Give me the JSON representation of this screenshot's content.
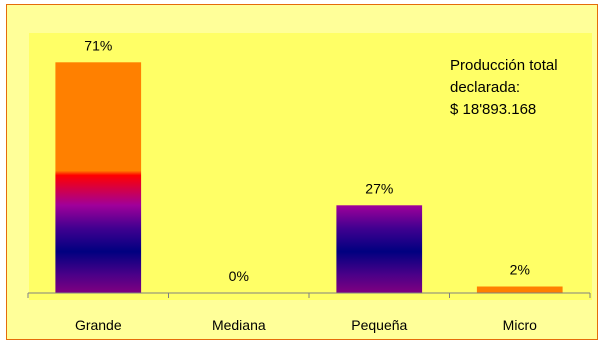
{
  "chart_data": {
    "type": "bar",
    "title": "",
    "xlabel": "",
    "ylabel": "",
    "categories": [
      "Grande",
      "Mediana",
      "Pequeña",
      "Micro"
    ],
    "values": [
      71,
      0,
      27,
      2
    ],
    "data_labels": [
      "71%",
      "0%",
      "27%",
      "2%"
    ],
    "ylim": [
      0,
      80
    ],
    "grid": false,
    "legend": "none",
    "annotation": [
      "Producción total",
      "declarada:",
      "$ 18'893.168"
    ],
    "colors": {
      "bar_top": "#ff8000",
      "bar_mid": "#ff0000",
      "bar_purple": "#800080",
      "bar_bottom": "#000080",
      "plot_background": "#ffff66",
      "chart_background": "#ffff99",
      "border": "#e46c0a"
    }
  }
}
